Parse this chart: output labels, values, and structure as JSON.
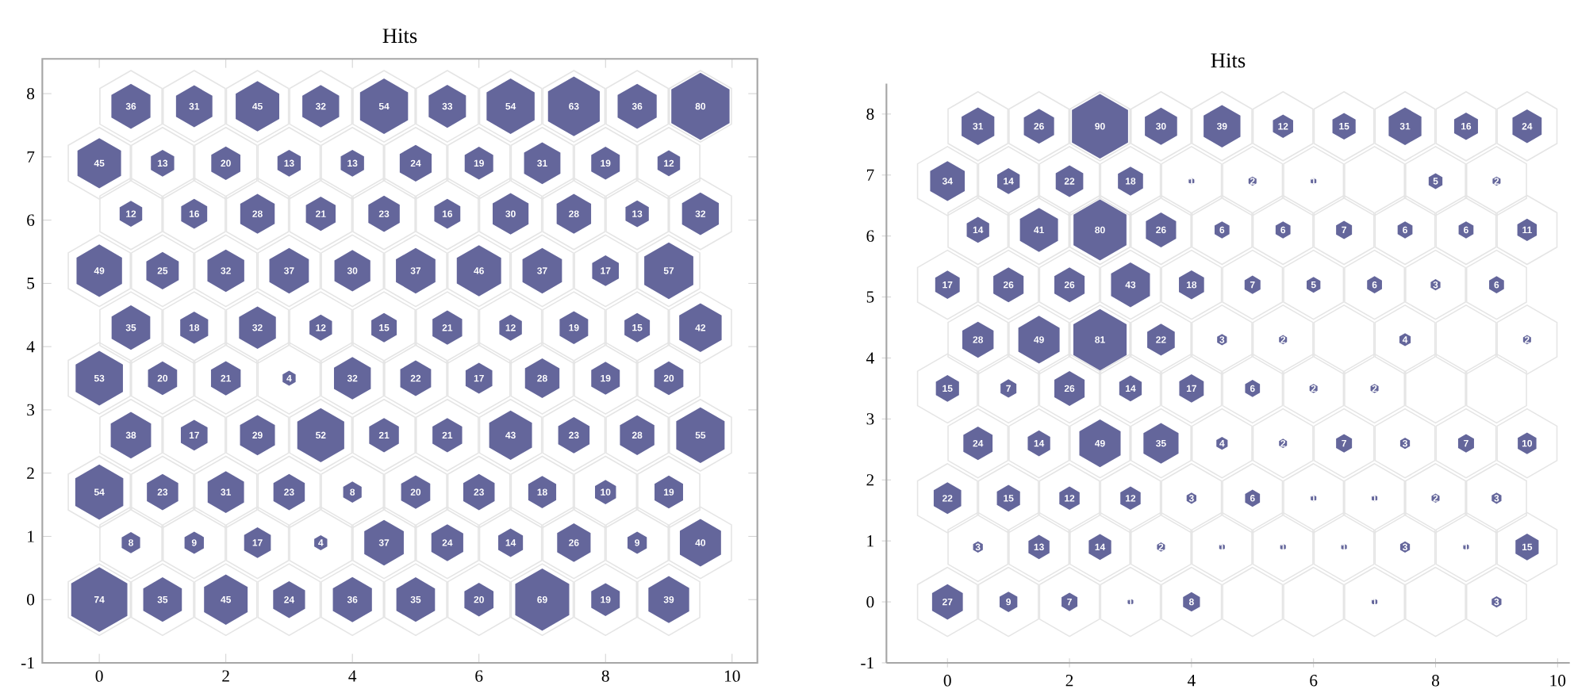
{
  "chart_data": [
    {
      "type": "bubble",
      "title": "Hits",
      "color": "#64669b",
      "xlim": [
        -0.9,
        10.4
      ],
      "ylim": [
        -1,
        8.55
      ],
      "xticks": [
        0,
        2,
        4,
        6,
        8,
        10
      ],
      "yticks": [
        -1,
        0,
        1,
        2,
        3,
        4,
        5,
        6,
        7,
        8
      ],
      "x": [
        0,
        1,
        2,
        3,
        4,
        5,
        6,
        7,
        8,
        9,
        0.5,
        1.5,
        2.5,
        3.5,
        4.5,
        5.5,
        6.5,
        7.5,
        8.5,
        9.5,
        0,
        1,
        2,
        3,
        4,
        5,
        6,
        7,
        8,
        9,
        0.5,
        1.5,
        2.5,
        3.5,
        4.5,
        5.5,
        6.5,
        7.5,
        8.5,
        9.5,
        0,
        1,
        2,
        3,
        4,
        5,
        6,
        7,
        8,
        9,
        0.5,
        1.5,
        2.5,
        3.5,
        4.5,
        5.5,
        6.5,
        7.5,
        8.5,
        9.5,
        0,
        1,
        2,
        3,
        4,
        5,
        6,
        7,
        8,
        9,
        0.5,
        1.5,
        2.5,
        3.5,
        4.5,
        5.5,
        6.5,
        7.5,
        8.5,
        9.5,
        0,
        1,
        2,
        3,
        4,
        5,
        6,
        7,
        8,
        9,
        0.5,
        1.5,
        2.5,
        3.5,
        4.5,
        5.5,
        6.5,
        7.5,
        8.5,
        9.5
      ],
      "values": [
        0,
        0,
        0,
        0,
        0,
        0,
        0,
        0,
        0,
        0,
        0.9,
        0.9,
        0.9,
        0.9,
        0.9,
        0.9,
        0.9,
        0.9,
        0.9,
        0.9,
        1.7,
        1.7,
        1.7,
        1.7,
        1.7,
        1.7,
        1.7,
        1.7,
        1.7,
        1.7,
        2.6,
        2.6,
        2.6,
        2.6,
        2.6,
        2.6,
        2.6,
        2.6,
        2.6,
        2.6,
        3.5,
        3.5,
        3.5,
        3.5,
        3.5,
        3.5,
        3.5,
        3.5,
        3.5,
        3.5,
        4.3,
        4.3,
        4.3,
        4.3,
        4.3,
        4.3,
        4.3,
        4.3,
        4.3,
        4.3,
        5.2,
        5.2,
        5.2,
        5.2,
        5.2,
        5.2,
        5.2,
        5.2,
        5.2,
        5.2,
        6.1,
        6.1,
        6.1,
        6.1,
        6.1,
        6.1,
        6.1,
        6.1,
        6.1,
        6.1,
        6.9,
        6.9,
        6.9,
        6.9,
        6.9,
        6.9,
        6.9,
        6.9,
        6.9,
        6.9,
        7.8,
        7.8,
        7.8,
        7.8,
        7.8,
        7.8,
        7.8,
        7.8,
        7.8,
        7.8
      ],
      "sizes": [
        0.93,
        0.44,
        0.56,
        0.3,
        0.45,
        0.44,
        0.25,
        0.86,
        0.24,
        0.49,
        0.1,
        0.11,
        0.21,
        0.05,
        0.46,
        0.3,
        0.18,
        0.33,
        0.11,
        0.5,
        0.68,
        0.29,
        0.39,
        0.29,
        0.1,
        0.25,
        0.29,
        0.23,
        0.13,
        0.24,
        0.48,
        0.21,
        0.36,
        0.65,
        0.26,
        0.26,
        0.54,
        0.29,
        0.35,
        0.69,
        0.66,
        0.25,
        0.26,
        0.05,
        0.4,
        0.28,
        0.21,
        0.35,
        0.24,
        0.25,
        0.44,
        0.23,
        0.4,
        0.15,
        0.19,
        0.26,
        0.15,
        0.24,
        0.19,
        0.53,
        0.61,
        0.31,
        0.4,
        0.46,
        0.38,
        0.46,
        0.58,
        0.46,
        0.21,
        0.71,
        0.15,
        0.2,
        0.35,
        0.26,
        0.29,
        0.2,
        0.38,
        0.35,
        0.16,
        0.4,
        0.56,
        0.16,
        0.25,
        0.16,
        0.16,
        0.3,
        0.24,
        0.39,
        0.24,
        0.15,
        0.45,
        0.39,
        0.56,
        0.4,
        0.68,
        0.41,
        0.68,
        0.79,
        0.45,
        1
      ],
      "annotations": [
        {
          "text": "74",
          "x": 0,
          "y": 0
        },
        {
          "text": "35",
          "x": 1,
          "y": 0
        },
        {
          "text": "45",
          "x": 2,
          "y": 0
        },
        {
          "text": "24",
          "x": 3,
          "y": 0
        },
        {
          "text": "36",
          "x": 4,
          "y": 0
        },
        {
          "text": "35",
          "x": 5,
          "y": 0
        },
        {
          "text": "20",
          "x": 6,
          "y": 0
        },
        {
          "text": "69",
          "x": 7,
          "y": 0
        },
        {
          "text": "19",
          "x": 8,
          "y": 0
        },
        {
          "text": "39",
          "x": 9,
          "y": 0
        },
        {
          "text": "8",
          "x": 0.5,
          "y": 0.9
        },
        {
          "text": "9",
          "x": 1.5,
          "y": 0.9
        },
        {
          "text": "17",
          "x": 2.5,
          "y": 0.9
        },
        {
          "text": "4",
          "x": 3.5,
          "y": 0.9
        },
        {
          "text": "37",
          "x": 4.5,
          "y": 0.9
        },
        {
          "text": "24",
          "x": 5.5,
          "y": 0.9
        },
        {
          "text": "14",
          "x": 6.5,
          "y": 0.9
        },
        {
          "text": "26",
          "x": 7.5,
          "y": 0.9
        },
        {
          "text": "9",
          "x": 8.5,
          "y": 0.9
        },
        {
          "text": "40",
          "x": 9.5,
          "y": 0.9
        },
        {
          "text": "54",
          "x": 0,
          "y": 1.7
        },
        {
          "text": "23",
          "x": 1,
          "y": 1.7
        },
        {
          "text": "31",
          "x": 2,
          "y": 1.7
        },
        {
          "text": "23",
          "x": 3,
          "y": 1.7
        },
        {
          "text": "8",
          "x": 4,
          "y": 1.7
        },
        {
          "text": "20",
          "x": 5,
          "y": 1.7
        },
        {
          "text": "23",
          "x": 6,
          "y": 1.7
        },
        {
          "text": "18",
          "x": 7,
          "y": 1.7
        },
        {
          "text": "10",
          "x": 8,
          "y": 1.7
        },
        {
          "text": "19",
          "x": 9,
          "y": 1.7
        },
        {
          "text": "38",
          "x": 0.5,
          "y": 2.6
        },
        {
          "text": "17",
          "x": 1.5,
          "y": 2.6
        },
        {
          "text": "29",
          "x": 2.5,
          "y": 2.6
        },
        {
          "text": "52",
          "x": 3.5,
          "y": 2.6
        },
        {
          "text": "21",
          "x": 4.5,
          "y": 2.6
        },
        {
          "text": "21",
          "x": 5.5,
          "y": 2.6
        },
        {
          "text": "43",
          "x": 6.5,
          "y": 2.6
        },
        {
          "text": "23",
          "x": 7.5,
          "y": 2.6
        },
        {
          "text": "28",
          "x": 8.5,
          "y": 2.6
        },
        {
          "text": "55",
          "x": 9.5,
          "y": 2.6
        },
        {
          "text": "53",
          "x": 0,
          "y": 3.5
        },
        {
          "text": "20",
          "x": 1,
          "y": 3.5
        },
        {
          "text": "21",
          "x": 2,
          "y": 3.5
        },
        {
          "text": "4",
          "x": 3,
          "y": 3.5
        },
        {
          "text": "32",
          "x": 4,
          "y": 3.5
        },
        {
          "text": "22",
          "x": 5,
          "y": 3.5
        },
        {
          "text": "17",
          "x": 6,
          "y": 3.5
        },
        {
          "text": "28",
          "x": 7,
          "y": 3.5
        },
        {
          "text": "19",
          "x": 8,
          "y": 3.5
        },
        {
          "text": "20",
          "x": 9,
          "y": 3.5
        },
        {
          "text": "35",
          "x": 0.5,
          "y": 4.3
        },
        {
          "text": "18",
          "x": 1.5,
          "y": 4.3
        },
        {
          "text": "32",
          "x": 2.5,
          "y": 4.3
        },
        {
          "text": "12",
          "x": 3.5,
          "y": 4.3
        },
        {
          "text": "15",
          "x": 4.5,
          "y": 4.3
        },
        {
          "text": "21",
          "x": 5.5,
          "y": 4.3
        },
        {
          "text": "12",
          "x": 6.5,
          "y": 4.3
        },
        {
          "text": "19",
          "x": 7.5,
          "y": 4.3
        },
        {
          "text": "15",
          "x": 8.5,
          "y": 4.3
        },
        {
          "text": "42",
          "x": 9.5,
          "y": 4.3
        },
        {
          "text": "49",
          "x": 0,
          "y": 5.2
        },
        {
          "text": "25",
          "x": 1,
          "y": 5.2
        },
        {
          "text": "32",
          "x": 2,
          "y": 5.2
        },
        {
          "text": "37",
          "x": 3,
          "y": 5.2
        },
        {
          "text": "30",
          "x": 4,
          "y": 5.2
        },
        {
          "text": "37",
          "x": 5,
          "y": 5.2
        },
        {
          "text": "46",
          "x": 6,
          "y": 5.2
        },
        {
          "text": "37",
          "x": 7,
          "y": 5.2
        },
        {
          "text": "17",
          "x": 8,
          "y": 5.2
        },
        {
          "text": "57",
          "x": 9,
          "y": 5.2
        },
        {
          "text": "12",
          "x": 0.5,
          "y": 6.1
        },
        {
          "text": "16",
          "x": 1.5,
          "y": 6.1
        },
        {
          "text": "28",
          "x": 2.5,
          "y": 6.1
        },
        {
          "text": "21",
          "x": 3.5,
          "y": 6.1
        },
        {
          "text": "23",
          "x": 4.5,
          "y": 6.1
        },
        {
          "text": "16",
          "x": 5.5,
          "y": 6.1
        },
        {
          "text": "30",
          "x": 6.5,
          "y": 6.1
        },
        {
          "text": "28",
          "x": 7.5,
          "y": 6.1
        },
        {
          "text": "13",
          "x": 8.5,
          "y": 6.1
        },
        {
          "text": "32",
          "x": 9.5,
          "y": 6.1
        },
        {
          "text": "45",
          "x": 0,
          "y": 6.9
        },
        {
          "text": "13",
          "x": 1,
          "y": 6.9
        },
        {
          "text": "20",
          "x": 2,
          "y": 6.9
        },
        {
          "text": "13",
          "x": 3,
          "y": 6.9
        },
        {
          "text": "13",
          "x": 4,
          "y": 6.9
        },
        {
          "text": "24",
          "x": 5,
          "y": 6.9
        },
        {
          "text": "19",
          "x": 6,
          "y": 6.9
        },
        {
          "text": "31",
          "x": 7,
          "y": 6.9
        },
        {
          "text": "19",
          "x": 8,
          "y": 6.9
        },
        {
          "text": "12",
          "x": 9,
          "y": 6.9
        },
        {
          "text": "36",
          "x": 0.5,
          "y": 7.8
        },
        {
          "text": "31",
          "x": 1.5,
          "y": 7.8
        },
        {
          "text": "45",
          "x": 2.5,
          "y": 7.8
        },
        {
          "text": "32",
          "x": 3.5,
          "y": 7.8
        },
        {
          "text": "54",
          "x": 4.5,
          "y": 7.8
        },
        {
          "text": "33",
          "x": 5.5,
          "y": 7.8
        },
        {
          "text": "54",
          "x": 6.5,
          "y": 7.8
        },
        {
          "text": "63",
          "x": 7.5,
          "y": 7.8
        },
        {
          "text": "36",
          "x": 8.5,
          "y": 7.8
        },
        {
          "text": "80",
          "x": 9.5,
          "y": 7.8
        }
      ]
    },
    {
      "type": "bubble",
      "title": "Hits",
      "color": "#64669b",
      "xlim": [
        -1,
        10.2
      ],
      "ylim": [
        -1,
        8.5
      ],
      "xticks": [
        0,
        2,
        4,
        6,
        8,
        10
      ],
      "yticks": [
        -1,
        0,
        1,
        2,
        3,
        4,
        5,
        6,
        7,
        8
      ],
      "x": [
        0,
        1,
        2,
        3,
        4,
        7,
        9,
        0.5,
        1.5,
        2.5,
        3.5,
        4.5,
        5.5,
        6.5,
        7.5,
        8.5,
        9.5,
        0,
        1,
        2,
        3,
        4,
        5,
        6,
        7,
        8,
        9,
        0.5,
        1.5,
        2.5,
        3.5,
        4.5,
        5.5,
        6.5,
        7.5,
        8.5,
        9.5,
        0,
        1,
        2,
        3,
        4,
        5,
        6,
        7,
        0.5,
        1.5,
        2.5,
        3.5,
        4.5,
        5.5,
        7.5,
        9.5,
        0,
        1,
        2,
        3,
        4,
        5,
        6,
        7,
        8,
        9,
        0.5,
        1.5,
        2.5,
        3.5,
        4.5,
        5.5,
        6.5,
        7.5,
        8.5,
        9.5,
        0,
        1,
        2,
        3,
        4,
        5,
        6,
        8,
        9,
        0.5,
        1.5,
        2.5,
        3.5,
        4.5,
        5.5,
        6.5,
        7.5,
        8.5,
        9.5
      ],
      "values": [
        0,
        0,
        0,
        0,
        0,
        0,
        0,
        0.9,
        0.9,
        0.9,
        0.9,
        0.9,
        0.9,
        0.9,
        0.9,
        0.9,
        0.9,
        1.7,
        1.7,
        1.7,
        1.7,
        1.7,
        1.7,
        1.7,
        1.7,
        1.7,
        1.7,
        2.6,
        2.6,
        2.6,
        2.6,
        2.6,
        2.6,
        2.6,
        2.6,
        2.6,
        2.6,
        3.5,
        3.5,
        3.5,
        3.5,
        3.5,
        3.5,
        3.5,
        3.5,
        4.3,
        4.3,
        4.3,
        4.3,
        4.3,
        4.3,
        4.3,
        4.3,
        5.2,
        5.2,
        5.2,
        5.2,
        5.2,
        5.2,
        5.2,
        5.2,
        5.2,
        5.2,
        6.1,
        6.1,
        6.1,
        6.1,
        6.1,
        6.1,
        6.1,
        6.1,
        6.1,
        6.1,
        6.9,
        6.9,
        6.9,
        6.9,
        6.9,
        6.9,
        6.9,
        6.9,
        6.9,
        7.8,
        7.8,
        7.8,
        7.8,
        7.8,
        7.8,
        7.8,
        7.8,
        7.8,
        7.8
      ],
      "sizes": [
        0.3,
        0.1,
        0.08,
        0.01,
        0.09,
        0.01,
        0.03,
        0.03,
        0.14,
        0.16,
        0.02,
        0.01,
        0.01,
        0.01,
        0.03,
        0.01,
        0.17,
        0.24,
        0.17,
        0.13,
        0.13,
        0.03,
        0.07,
        0.01,
        0.01,
        0.02,
        0.03,
        0.27,
        0.16,
        0.54,
        0.39,
        0.04,
        0.02,
        0.08,
        0.03,
        0.08,
        0.11,
        0.17,
        0.08,
        0.29,
        0.16,
        0.19,
        0.07,
        0.02,
        0.02,
        0.31,
        0.54,
        0.9,
        0.24,
        0.03,
        0.02,
        0.04,
        0.02,
        0.19,
        0.29,
        0.29,
        0.48,
        0.2,
        0.08,
        0.06,
        0.07,
        0.03,
        0.07,
        0.16,
        0.46,
        0.89,
        0.29,
        0.07,
        0.07,
        0.08,
        0.07,
        0.07,
        0.12,
        0.38,
        0.16,
        0.24,
        0.2,
        0.01,
        0.02,
        0.01,
        0.06,
        0.02,
        0.34,
        0.29,
        1,
        0.33,
        0.43,
        0.13,
        0.17,
        0.34,
        0.18,
        0.27
      ],
      "annotations": [
        {
          "text": "27",
          "x": 0,
          "y": 0
        },
        {
          "text": "9",
          "x": 1,
          "y": 0
        },
        {
          "text": "7",
          "x": 2,
          "y": 0
        },
        {
          "text": "1",
          "x": 3,
          "y": 0
        },
        {
          "text": "8",
          "x": 4,
          "y": 0
        },
        {
          "text": "1",
          "x": 7,
          "y": 0
        },
        {
          "text": "3",
          "x": 9,
          "y": 0
        },
        {
          "text": "3",
          "x": 0.5,
          "y": 0.9
        },
        {
          "text": "13",
          "x": 1.5,
          "y": 0.9
        },
        {
          "text": "14",
          "x": 2.5,
          "y": 0.9
        },
        {
          "text": "2",
          "x": 3.5,
          "y": 0.9
        },
        {
          "text": "1",
          "x": 4.5,
          "y": 0.9
        },
        {
          "text": "1",
          "x": 5.5,
          "y": 0.9
        },
        {
          "text": "1",
          "x": 6.5,
          "y": 0.9
        },
        {
          "text": "3",
          "x": 7.5,
          "y": 0.9
        },
        {
          "text": "1",
          "x": 8.5,
          "y": 0.9
        },
        {
          "text": "15",
          "x": 9.5,
          "y": 0.9
        },
        {
          "text": "22",
          "x": 0,
          "y": 1.7
        },
        {
          "text": "15",
          "x": 1,
          "y": 1.7
        },
        {
          "text": "12",
          "x": 2,
          "y": 1.7
        },
        {
          "text": "12",
          "x": 3,
          "y": 1.7
        },
        {
          "text": "3",
          "x": 4,
          "y": 1.7
        },
        {
          "text": "6",
          "x": 5,
          "y": 1.7
        },
        {
          "text": "1",
          "x": 6,
          "y": 1.7
        },
        {
          "text": "1",
          "x": 7,
          "y": 1.7
        },
        {
          "text": "2",
          "x": 8,
          "y": 1.7
        },
        {
          "text": "3",
          "x": 9,
          "y": 1.7
        },
        {
          "text": "24",
          "x": 0.5,
          "y": 2.6
        },
        {
          "text": "14",
          "x": 1.5,
          "y": 2.6
        },
        {
          "text": "49",
          "x": 2.5,
          "y": 2.6
        },
        {
          "text": "35",
          "x": 3.5,
          "y": 2.6
        },
        {
          "text": "4",
          "x": 4.5,
          "y": 2.6
        },
        {
          "text": "2",
          "x": 5.5,
          "y": 2.6
        },
        {
          "text": "7",
          "x": 6.5,
          "y": 2.6
        },
        {
          "text": "3",
          "x": 7.5,
          "y": 2.6
        },
        {
          "text": "7",
          "x": 8.5,
          "y": 2.6
        },
        {
          "text": "10",
          "x": 9.5,
          "y": 2.6
        },
        {
          "text": "15",
          "x": 0,
          "y": 3.5
        },
        {
          "text": "7",
          "x": 1,
          "y": 3.5
        },
        {
          "text": "26",
          "x": 2,
          "y": 3.5
        },
        {
          "text": "14",
          "x": 3,
          "y": 3.5
        },
        {
          "text": "17",
          "x": 4,
          "y": 3.5
        },
        {
          "text": "6",
          "x": 5,
          "y": 3.5
        },
        {
          "text": "2",
          "x": 6,
          "y": 3.5
        },
        {
          "text": "2",
          "x": 7,
          "y": 3.5
        },
        {
          "text": "28",
          "x": 0.5,
          "y": 4.3
        },
        {
          "text": "49",
          "x": 1.5,
          "y": 4.3
        },
        {
          "text": "81",
          "x": 2.5,
          "y": 4.3
        },
        {
          "text": "22",
          "x": 3.5,
          "y": 4.3
        },
        {
          "text": "3",
          "x": 4.5,
          "y": 4.3
        },
        {
          "text": "2",
          "x": 5.5,
          "y": 4.3
        },
        {
          "text": "4",
          "x": 7.5,
          "y": 4.3
        },
        {
          "text": "2",
          "x": 9.5,
          "y": 4.3
        },
        {
          "text": "17",
          "x": 0,
          "y": 5.2
        },
        {
          "text": "26",
          "x": 1,
          "y": 5.2
        },
        {
          "text": "26",
          "x": 2,
          "y": 5.2
        },
        {
          "text": "43",
          "x": 3,
          "y": 5.2
        },
        {
          "text": "18",
          "x": 4,
          "y": 5.2
        },
        {
          "text": "7",
          "x": 5,
          "y": 5.2
        },
        {
          "text": "5",
          "x": 6,
          "y": 5.2
        },
        {
          "text": "6",
          "x": 7,
          "y": 5.2
        },
        {
          "text": "3",
          "x": 8,
          "y": 5.2
        },
        {
          "text": "6",
          "x": 9,
          "y": 5.2
        },
        {
          "text": "14",
          "x": 0.5,
          "y": 6.1
        },
        {
          "text": "41",
          "x": 1.5,
          "y": 6.1
        },
        {
          "text": "80",
          "x": 2.5,
          "y": 6.1
        },
        {
          "text": "26",
          "x": 3.5,
          "y": 6.1
        },
        {
          "text": "6",
          "x": 4.5,
          "y": 6.1
        },
        {
          "text": "6",
          "x": 5.5,
          "y": 6.1
        },
        {
          "text": "7",
          "x": 6.5,
          "y": 6.1
        },
        {
          "text": "6",
          "x": 7.5,
          "y": 6.1
        },
        {
          "text": "6",
          "x": 8.5,
          "y": 6.1
        },
        {
          "text": "11",
          "x": 9.5,
          "y": 6.1
        },
        {
          "text": "34",
          "x": 0,
          "y": 6.9
        },
        {
          "text": "14",
          "x": 1,
          "y": 6.9
        },
        {
          "text": "22",
          "x": 2,
          "y": 6.9
        },
        {
          "text": "18",
          "x": 3,
          "y": 6.9
        },
        {
          "text": "1",
          "x": 4,
          "y": 6.9
        },
        {
          "text": "2",
          "x": 5,
          "y": 6.9
        },
        {
          "text": "1",
          "x": 6,
          "y": 6.9
        },
        {
          "text": "5",
          "x": 8,
          "y": 6.9
        },
        {
          "text": "2",
          "x": 9,
          "y": 6.9
        },
        {
          "text": "31",
          "x": 0.5,
          "y": 7.8
        },
        {
          "text": "26",
          "x": 1.5,
          "y": 7.8
        },
        {
          "text": "90",
          "x": 2.5,
          "y": 7.8
        },
        {
          "text": "30",
          "x": 3.5,
          "y": 7.8
        },
        {
          "text": "39",
          "x": 4.5,
          "y": 7.8
        },
        {
          "text": "12",
          "x": 5.5,
          "y": 7.8
        },
        {
          "text": "15",
          "x": 6.5,
          "y": 7.8
        },
        {
          "text": "31",
          "x": 7.5,
          "y": 7.8
        },
        {
          "text": "16",
          "x": 8.5,
          "y": 7.8
        },
        {
          "text": "24",
          "x": 9.5,
          "y": 7.8
        }
      ]
    }
  ]
}
